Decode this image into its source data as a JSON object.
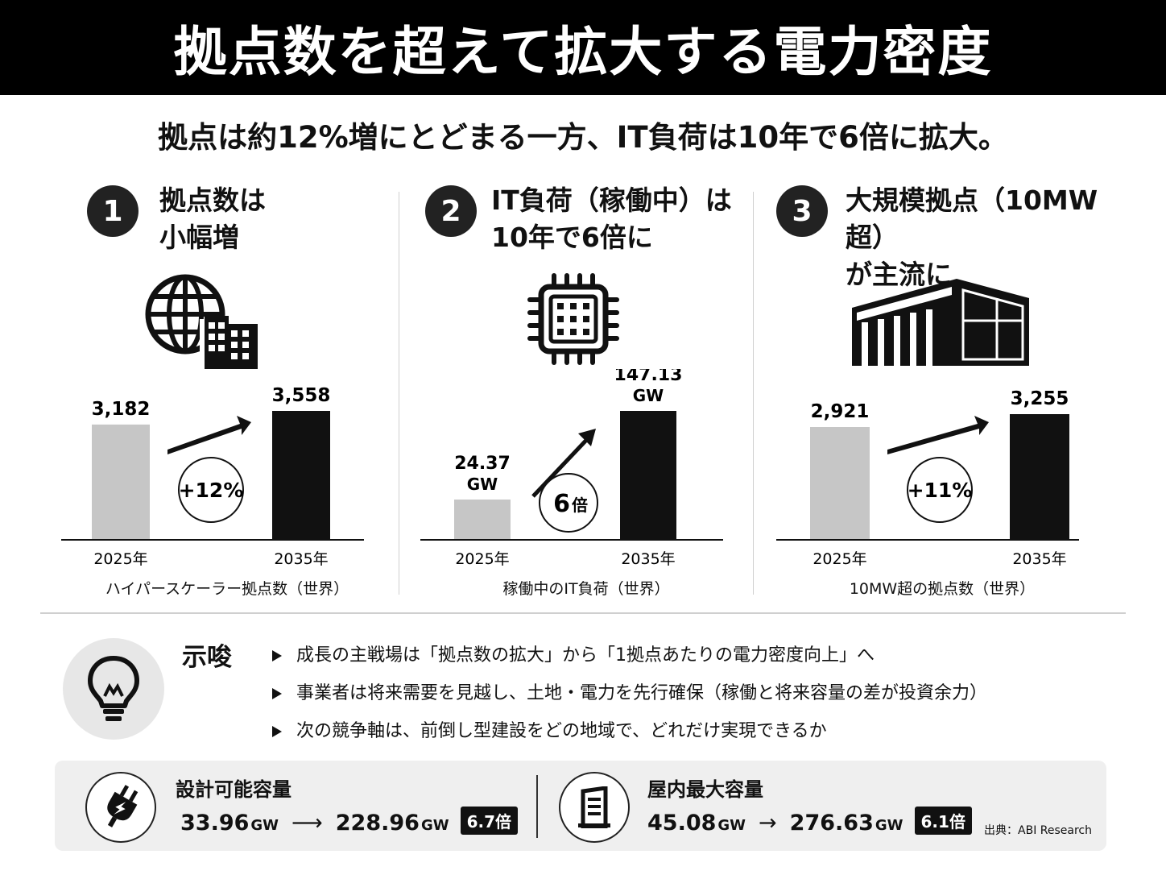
{
  "header": {
    "title": "拠点数を超えて拡大する電力密度"
  },
  "subtitle": "拠点は約12%増にとどまる一方、IT負荷は10年で6倍に拡大。",
  "columns": [
    {
      "number": "1",
      "title": "拠点数は\n小幅増",
      "icon": "globe-building-icon",
      "caption": "ハイパースケーラー拠点数（世界）"
    },
    {
      "number": "2",
      "title": "IT負荷（稼働中）は\n10年で6倍に",
      "icon": "cpu-chip-icon",
      "caption": "稼働中のIT負荷（世界）"
    },
    {
      "number": "3",
      "title": "大規模拠点（10MW超）\nが主流に",
      "icon": "warehouse-icon",
      "caption": "10MW超の拠点数（世界）"
    }
  ],
  "chart_data": [
    {
      "type": "bar",
      "title": "ハイパースケーラー拠点数（世界）",
      "categories": [
        "2025年",
        "2035年"
      ],
      "values": [
        3182,
        3558
      ],
      "labels": [
        "3,182",
        "3,558"
      ],
      "change_label": "+12%"
    },
    {
      "type": "bar",
      "title": "稼働中のIT負荷（世界）",
      "categories": [
        "2025年",
        "2035年"
      ],
      "values": [
        24.37,
        147.13
      ],
      "unit": "GW",
      "labels": [
        "24.37",
        "147.13"
      ],
      "change_label": "6",
      "change_suffix": "倍"
    },
    {
      "type": "bar",
      "title": "10MW超の拠点数（世界）",
      "categories": [
        "2025年",
        "2035年"
      ],
      "values": [
        2921,
        3255
      ],
      "labels": [
        "2,921",
        "3,255"
      ],
      "change_label": "+11%"
    }
  ],
  "implications": {
    "title": "示唆",
    "icon": "lightbulb-icon",
    "items": [
      "成長の主戦場は「拠点数の拡大」から「1拠点あたりの電力密度向上」へ",
      "事業者は将来需要を見越し、土地・電力を先行確保（稼働と将来容量の差が投資余力）",
      "次の競争軸は、前倒し型建設をどの地域で、どれだけ実現できるか"
    ]
  },
  "footer": {
    "left": {
      "icon": "power-plug-icon",
      "label": "設計可能容量",
      "from": "33.96",
      "to": "228.96",
      "unit": "GW",
      "arrow": "⟶",
      "badge": "6.7倍"
    },
    "right": {
      "icon": "server-building-icon",
      "label": "屋内最大容量",
      "from": "45.08",
      "to": "276.63",
      "unit": "GW",
      "arrow": "→",
      "badge": "6.1倍"
    },
    "source": "出典：ABI Research"
  },
  "colors": {
    "bar_2025": "#c6c6c6",
    "bar_2035": "#111111",
    "header_bg": "#000000"
  }
}
